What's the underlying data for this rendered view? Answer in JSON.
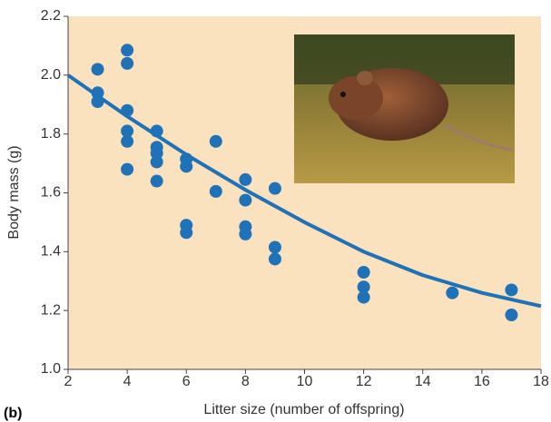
{
  "chart_data": {
    "type": "scatter",
    "x_label": "Litter size (number of offspring)",
    "y_label": "Body mass (g)",
    "panel_label": "(b)",
    "color": "#1f72b8",
    "x": [
      3,
      3,
      3,
      4,
      4,
      4,
      4,
      4,
      4,
      5,
      5,
      5,
      5,
      5,
      6,
      6,
      6,
      6,
      7,
      7,
      8,
      8,
      8,
      8,
      9,
      9,
      9,
      12,
      12,
      12,
      15,
      17,
      17
    ],
    "values": [
      2.02,
      1.94,
      1.91,
      2.085,
      2.04,
      1.88,
      1.81,
      1.775,
      1.68,
      1.81,
      1.755,
      1.735,
      1.705,
      1.64,
      1.715,
      1.69,
      1.49,
      1.465,
      1.775,
      1.605,
      1.645,
      1.575,
      1.485,
      1.46,
      1.615,
      1.415,
      1.375,
      1.33,
      1.28,
      1.245,
      1.26,
      1.27,
      1.185
    ],
    "fit": {
      "x": [
        2,
        4,
        6,
        8,
        10,
        12,
        14,
        16,
        18
      ],
      "values": [
        2.0,
        1.86,
        1.73,
        1.61,
        1.5,
        1.4,
        1.32,
        1.26,
        1.215
      ]
    },
    "xlim": [
      2,
      18
    ],
    "xticks": [
      2,
      4,
      6,
      8,
      10,
      12,
      14,
      16,
      18
    ],
    "ylim": [
      1,
      2.2
    ],
    "yticks": [
      {
        "value": 1,
        "label": "1.0"
      },
      1.2,
      1.4,
      1.6,
      1.8,
      {
        "value": 2,
        "label": "2.0"
      },
      2.2
    ]
  }
}
